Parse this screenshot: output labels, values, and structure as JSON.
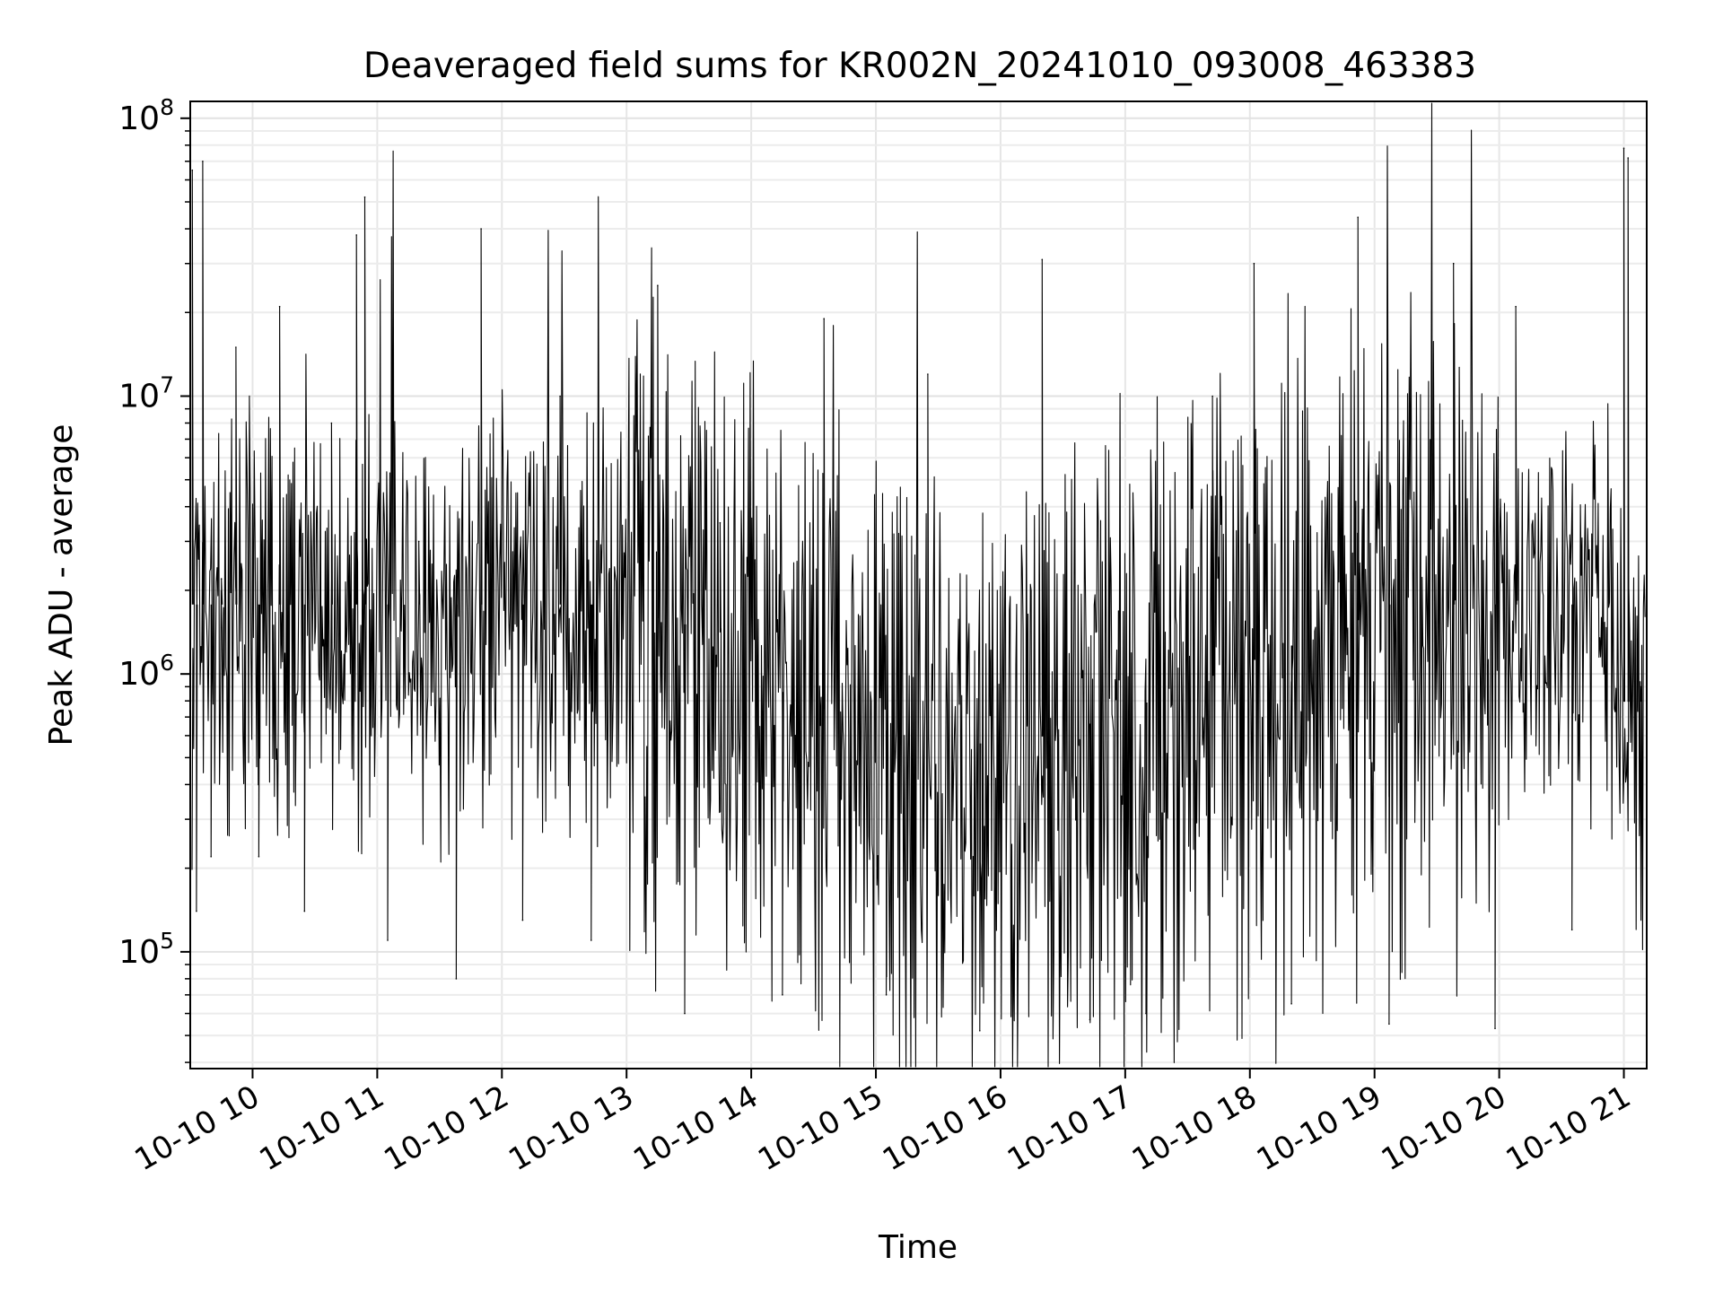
{
  "chart_data": {
    "type": "line",
    "title": "Deaveraged field sums for KR002N_20241010_093008_463383",
    "xlabel": "Time",
    "ylabel": "Peak ADU - average",
    "y_scale": "log",
    "ylim": [
      38000,
      115000000
    ],
    "xlim": [
      "2024-10-10T09:30:00",
      "2024-10-10T21:11:00"
    ],
    "grid": true,
    "line_color": "#000000",
    "x_ticks": [
      {
        "value": "2024-10-10T10:00:00",
        "label": "10-10 10"
      },
      {
        "value": "2024-10-10T11:00:00",
        "label": "10-10 11"
      },
      {
        "value": "2024-10-10T12:00:00",
        "label": "10-10 12"
      },
      {
        "value": "2024-10-10T13:00:00",
        "label": "10-10 13"
      },
      {
        "value": "2024-10-10T14:00:00",
        "label": "10-10 14"
      },
      {
        "value": "2024-10-10T15:00:00",
        "label": "10-10 15"
      },
      {
        "value": "2024-10-10T16:00:00",
        "label": "10-10 16"
      },
      {
        "value": "2024-10-10T17:00:00",
        "label": "10-10 17"
      },
      {
        "value": "2024-10-10T18:00:00",
        "label": "10-10 18"
      },
      {
        "value": "2024-10-10T19:00:00",
        "label": "10-10 19"
      },
      {
        "value": "2024-10-10T20:00:00",
        "label": "10-10 20"
      },
      {
        "value": "2024-10-10T21:00:00",
        "label": "10-10 21"
      }
    ],
    "y_ticks": [
      {
        "value": 100000,
        "base": "10",
        "exp": "5"
      },
      {
        "value": 1000000,
        "base": "10",
        "exp": "6"
      },
      {
        "value": 10000000,
        "base": "10",
        "exp": "7"
      },
      {
        "value": 100000000,
        "base": "10",
        "exp": "8"
      }
    ],
    "series": [
      {
        "values_note_free": true,
        "x": [
          "2024-10-10T09:31:00",
          "2024-10-10T09:33:00",
          "2024-10-10T09:36:00",
          "2024-10-10T09:40:00",
          "2024-10-10T09:45:00",
          "2024-10-10T09:52:00",
          "2024-10-10T10:03:00",
          "2024-10-10T10:13:00",
          "2024-10-10T10:25:00",
          "2024-10-10T10:38:00",
          "2024-10-10T10:50:00",
          "2024-10-10T10:54:00",
          "2024-10-10T11:05:00",
          "2024-10-10T11:20:00",
          "2024-10-10T11:38:00",
          "2024-10-10T11:50:00",
          "2024-10-10T12:10:00",
          "2024-10-10T12:28:00",
          "2024-10-10T12:43:00",
          "2024-10-10T13:15:00",
          "2024-10-10T13:28:00",
          "2024-10-10T13:45:00",
          "2024-10-10T14:15:00",
          "2024-10-10T14:35:00",
          "2024-10-10T15:05:00",
          "2024-10-10T15:25:00",
          "2024-10-10T15:50:00",
          "2024-10-10T16:20:00",
          "2024-10-10T16:43:00",
          "2024-10-10T17:10:00",
          "2024-10-10T17:42:00",
          "2024-10-10T18:02:00",
          "2024-10-10T18:20:00",
          "2024-10-10T18:52:00",
          "2024-10-10T19:07:00",
          "2024-10-10T19:38:00",
          "2024-10-10T19:58:00",
          "2024-10-10T20:08:00",
          "2024-10-10T20:35:00",
          "2024-10-10T21:00:00",
          "2024-10-10T21:02:00",
          "2024-10-10T21:05:00",
          "2024-10-10T21:08:00"
        ],
        "values": [
          65000000,
          140000,
          70000000,
          220000,
          2200000,
          15000000,
          220000,
          21000000,
          140000,
          8000000,
          38000000,
          52000000,
          110000,
          3000000,
          80000,
          40000000,
          130000,
          10000000,
          110000,
          25000000,
          60000,
          3500000,
          70000,
          19000000,
          70000,
          12000000,
          52000,
          31000000,
          57000,
          60000,
          10000000,
          30000000,
          65000,
          44000000,
          55000,
          30000000,
          53000,
          21000000,
          120000,
          78000000,
          72000000,
          700000,
          900000
        ]
      }
    ]
  }
}
